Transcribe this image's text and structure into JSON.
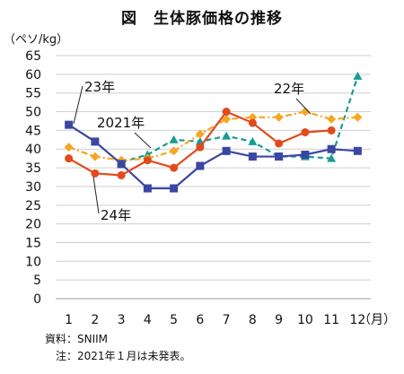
{
  "title": "図　生体豚価格の推移",
  "unit_label": "（ペソ/kg）",
  "x_unit_label": "（月）",
  "source_note": "資料：SNIIM",
  "footnote": "注：2021年１月は未発表。",
  "chart_data": {
    "type": "line",
    "title": "図　生体豚価格の推移",
    "ylabel": "（ペソ/kg）",
    "xlabel": "（月）",
    "ylim": [
      0,
      65
    ],
    "yticks": [
      "0",
      "5",
      "10",
      "15",
      "20",
      "25",
      "30",
      "35",
      "40",
      "45",
      "50",
      "55",
      "60",
      "65"
    ],
    "categories": [
      "1",
      "2",
      "3",
      "4",
      "5",
      "6",
      "7",
      "8",
      "9",
      "10",
      "11",
      "12"
    ],
    "grid": true,
    "series": [
      {
        "name": "2021年",
        "color": "#1a9a93",
        "dash": "6,4",
        "marker": "triangle",
        "values": [
          null,
          null,
          36.5,
          38.5,
          42.5,
          42.0,
          43.5,
          42.0,
          38.0,
          38.0,
          37.5,
          59.5
        ]
      },
      {
        "name": "22年",
        "color": "#f5a623",
        "dash": "7,3,2,3",
        "marker": "diamond",
        "values": [
          40.5,
          38.0,
          37.0,
          37.5,
          39.5,
          44.0,
          48.0,
          48.5,
          48.5,
          50.0,
          48.0,
          48.5
        ]
      },
      {
        "name": "23年",
        "color": "#3a46a3",
        "dash": "",
        "marker": "square",
        "values": [
          46.5,
          42.0,
          36.0,
          29.5,
          29.5,
          35.5,
          39.5,
          38.0,
          38.0,
          38.5,
          40.0,
          39.5
        ]
      },
      {
        "name": "24年",
        "color": "#e24a1c",
        "dash": "",
        "marker": "circle",
        "values": [
          37.5,
          33.5,
          33.0,
          37.0,
          35.0,
          40.5,
          50.0,
          47.0,
          41.5,
          44.5,
          45.0,
          null
        ]
      }
    ]
  }
}
